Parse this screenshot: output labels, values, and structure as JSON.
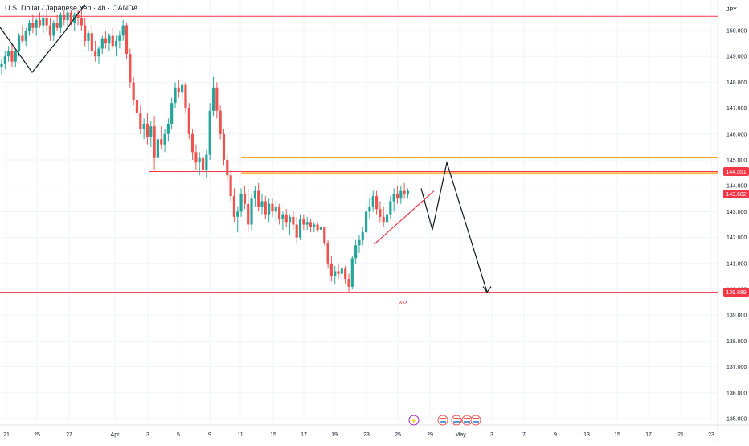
{
  "header": {
    "symbol": "U.S. Dollar / Japanese Yen",
    "interval": "4h",
    "exchange": "OANDA",
    "separator": " · "
  },
  "colors": {
    "up": "#26a69a",
    "down": "#ef5350",
    "level_red": "#f23645",
    "level_orange": "#ff9800",
    "projection": "#131722",
    "pink_line": "#e48bab",
    "grid": "#f0f3fa",
    "axis_text": "#131722"
  },
  "icons": [
    "lightning-event-icon",
    "us-flag-event-icon",
    "us-flag-event-icon",
    "us-flag-event-icon",
    "us-flag-event-icon"
  ],
  "chart_data": {
    "type": "candlestick",
    "currency_label": "JPY",
    "y_ticks": [
      "150.000",
      "149.000",
      "148.000",
      "147.000",
      "146.000",
      "145.000",
      "144.000",
      "143.000",
      "142.000",
      "141.000",
      "140.000",
      "139.000",
      "138.000",
      "137.000",
      "136.000",
      "135.000"
    ],
    "ylim": [
      134.7,
      150.8
    ],
    "x_ticks": [
      "21",
      "25",
      "27",
      "Apr",
      "3",
      "5",
      "9",
      "11",
      "15",
      "17",
      "19",
      "23",
      "25",
      "29",
      "May",
      "3",
      "7",
      "9",
      "13",
      "15",
      "17",
      "21",
      "23"
    ],
    "price_labels": [
      {
        "text": "144.551",
        "value": 144.551
      },
      {
        "text": "143.682",
        "value": 143.682
      },
      {
        "text": "139.889",
        "value": 139.889
      }
    ],
    "horizontal_levels": [
      {
        "value": 150.55,
        "color": "#f23645",
        "from": "start"
      },
      {
        "value": 144.551,
        "color": "#f23645",
        "from": "Apr 3"
      },
      {
        "value": 145.1,
        "color": "#ff9800",
        "from": "Apr 11"
      },
      {
        "value": 144.5,
        "color": "#ff9800",
        "from": "Apr 11"
      },
      {
        "value": 143.682,
        "color": "#e48bab",
        "from": "start"
      },
      {
        "value": 139.889,
        "color": "#f23645",
        "from": "start"
      }
    ],
    "annotation": "xxx",
    "candles_ohlc": [
      [
        148.6,
        148.9,
        148.3,
        148.7
      ],
      [
        148.7,
        149.2,
        148.5,
        149.0
      ],
      [
        149.0,
        149.4,
        148.8,
        149.2
      ],
      [
        149.2,
        149.5,
        148.6,
        148.8
      ],
      [
        148.8,
        149.3,
        148.6,
        149.2
      ],
      [
        149.2,
        149.9,
        149.0,
        149.8
      ],
      [
        149.8,
        150.2,
        149.5,
        149.6
      ],
      [
        149.6,
        150.1,
        149.4,
        150.0
      ],
      [
        150.0,
        150.4,
        149.8,
        150.3
      ],
      [
        150.3,
        150.6,
        149.9,
        150.1
      ],
      [
        150.1,
        150.5,
        149.8,
        150.4
      ],
      [
        150.4,
        150.7,
        150.1,
        150.2
      ],
      [
        150.2,
        150.6,
        149.9,
        150.5
      ],
      [
        150.5,
        150.8,
        150.0,
        150.2
      ],
      [
        150.2,
        150.5,
        149.6,
        149.8
      ],
      [
        149.8,
        150.4,
        149.6,
        150.3
      ],
      [
        150.3,
        150.6,
        150.0,
        150.1
      ],
      [
        150.1,
        150.7,
        149.9,
        150.6
      ],
      [
        150.6,
        150.8,
        150.2,
        150.4
      ],
      [
        150.4,
        150.8,
        150.1,
        150.7
      ],
      [
        150.7,
        150.8,
        150.2,
        150.3
      ],
      [
        150.3,
        150.7,
        150.0,
        150.6
      ],
      [
        150.6,
        150.8,
        150.2,
        150.5
      ],
      [
        150.5,
        150.8,
        150.0,
        150.2
      ],
      [
        150.2,
        150.5,
        149.4,
        149.6
      ],
      [
        149.6,
        150.0,
        149.2,
        149.9
      ],
      [
        149.9,
        150.2,
        149.0,
        149.2
      ],
      [
        149.2,
        149.6,
        148.8,
        149.0
      ],
      [
        149.0,
        149.4,
        148.7,
        149.3
      ],
      [
        149.3,
        149.8,
        149.1,
        149.7
      ],
      [
        149.7,
        150.0,
        149.3,
        149.5
      ],
      [
        149.5,
        149.9,
        149.2,
        149.8
      ],
      [
        149.8,
        150.1,
        149.3,
        149.4
      ],
      [
        149.4,
        149.8,
        149.0,
        149.6
      ],
      [
        149.6,
        150.0,
        149.3,
        149.8
      ],
      [
        149.8,
        150.4,
        149.6,
        150.2
      ],
      [
        150.2,
        150.3,
        148.9,
        149.1
      ],
      [
        149.1,
        149.3,
        147.8,
        148.0
      ],
      [
        148.0,
        148.2,
        147.1,
        147.3
      ],
      [
        147.3,
        147.6,
        146.6,
        146.8
      ],
      [
        146.8,
        147.1,
        146.0,
        146.2
      ],
      [
        146.2,
        146.6,
        145.8,
        146.4
      ],
      [
        146.4,
        146.8,
        145.6,
        145.9
      ],
      [
        145.9,
        146.5,
        145.5,
        146.3
      ],
      [
        146.3,
        146.7,
        144.6,
        145.1
      ],
      [
        145.1,
        146.0,
        144.9,
        145.8
      ],
      [
        145.8,
        146.3,
        145.4,
        145.6
      ],
      [
        145.6,
        146.2,
        145.3,
        146.0
      ],
      [
        146.0,
        146.6,
        145.7,
        146.4
      ],
      [
        146.4,
        147.4,
        146.2,
        147.2
      ],
      [
        147.2,
        148.0,
        147.0,
        147.8
      ],
      [
        147.8,
        148.1,
        147.4,
        147.6
      ],
      [
        147.6,
        148.1,
        147.3,
        147.9
      ],
      [
        147.9,
        148.0,
        146.8,
        147.0
      ],
      [
        147.0,
        147.2,
        145.8,
        146.0
      ],
      [
        146.0,
        146.2,
        145.0,
        145.3
      ],
      [
        145.3,
        145.6,
        144.6,
        144.9
      ],
      [
        144.9,
        145.3,
        144.4,
        145.1
      ],
      [
        145.1,
        145.5,
        144.2,
        144.6
      ],
      [
        144.6,
        145.4,
        144.3,
        145.2
      ],
      [
        145.2,
        147.2,
        145.0,
        146.9
      ],
      [
        146.9,
        148.2,
        146.7,
        147.8
      ],
      [
        147.8,
        148.0,
        146.6,
        146.9
      ],
      [
        146.9,
        147.1,
        145.8,
        146.0
      ],
      [
        146.0,
        146.2,
        144.8,
        145.0
      ],
      [
        145.0,
        145.2,
        144.2,
        144.4
      ],
      [
        144.4,
        144.6,
        143.4,
        143.6
      ],
      [
        143.6,
        143.9,
        142.6,
        142.8
      ],
      [
        142.8,
        143.2,
        142.2,
        143.0
      ],
      [
        143.0,
        143.9,
        142.8,
        143.7
      ],
      [
        143.7,
        144.0,
        143.1,
        143.3
      ],
      [
        143.3,
        143.9,
        142.2,
        142.5
      ],
      [
        142.5,
        143.7,
        142.3,
        143.5
      ],
      [
        143.5,
        144.0,
        143.2,
        143.8
      ],
      [
        143.8,
        144.1,
        143.0,
        143.2
      ],
      [
        143.2,
        143.7,
        142.9,
        143.4
      ],
      [
        143.4,
        143.6,
        142.7,
        142.9
      ],
      [
        142.9,
        143.5,
        142.6,
        143.3
      ],
      [
        143.3,
        143.5,
        142.8,
        143.0
      ],
      [
        143.0,
        143.4,
        142.6,
        143.2
      ],
      [
        143.2,
        143.3,
        142.5,
        142.7
      ],
      [
        142.7,
        143.0,
        142.3,
        142.9
      ],
      [
        142.9,
        143.1,
        142.4,
        142.6
      ],
      [
        142.6,
        142.9,
        142.1,
        142.8
      ],
      [
        142.8,
        143.0,
        142.3,
        142.5
      ],
      [
        142.5,
        142.8,
        141.8,
        142.0
      ],
      [
        142.0,
        142.9,
        141.9,
        142.7
      ],
      [
        142.7,
        142.9,
        142.3,
        142.5
      ],
      [
        142.5,
        142.8,
        142.3,
        142.6
      ],
      [
        142.6,
        142.7,
        142.2,
        142.4
      ],
      [
        142.4,
        142.6,
        142.2,
        142.5
      ],
      [
        142.5,
        142.6,
        142.2,
        142.3
      ],
      [
        142.3,
        142.5,
        142.2,
        142.4
      ],
      [
        142.4,
        142.4,
        141.7,
        141.8
      ],
      [
        141.8,
        141.9,
        140.8,
        141.0
      ],
      [
        141.0,
        141.3,
        140.3,
        140.5
      ],
      [
        140.5,
        140.9,
        140.2,
        140.7
      ],
      [
        140.7,
        141.0,
        140.4,
        140.6
      ],
      [
        140.6,
        140.9,
        140.3,
        140.8
      ],
      [
        140.8,
        140.9,
        140.2,
        140.4
      ],
      [
        140.4,
        140.6,
        139.9,
        140.1
      ],
      [
        140.1,
        141.3,
        140.0,
        141.2
      ],
      [
        141.2,
        141.9,
        141.0,
        141.7
      ],
      [
        141.7,
        142.1,
        141.4,
        141.9
      ],
      [
        141.9,
        142.4,
        141.7,
        142.2
      ],
      [
        142.2,
        143.3,
        142.0,
        143.0
      ],
      [
        143.0,
        143.5,
        142.7,
        143.2
      ],
      [
        143.2,
        143.8,
        143.0,
        143.6
      ],
      [
        143.6,
        143.8,
        142.9,
        143.1
      ],
      [
        143.1,
        143.4,
        142.6,
        142.8
      ],
      [
        142.8,
        143.2,
        142.4,
        142.6
      ],
      [
        142.6,
        143.0,
        142.3,
        142.9
      ],
      [
        142.9,
        143.6,
        142.7,
        143.4
      ],
      [
        143.4,
        143.9,
        143.0,
        143.7
      ],
      [
        143.7,
        144.0,
        143.3,
        143.5
      ],
      [
        143.5,
        144.0,
        143.3,
        143.8
      ],
      [
        143.8,
        144.1,
        143.5,
        143.7
      ],
      [
        143.7,
        143.9,
        143.5,
        143.8
      ]
    ],
    "projection_path": [
      {
        "date": "Apr 27",
        "price": 143.9
      },
      {
        "date": "Apr 28",
        "price": 142.3
      },
      {
        "date": "Apr 30",
        "price": 144.9
      },
      {
        "date": "May 2",
        "price": 139.889
      }
    ]
  }
}
